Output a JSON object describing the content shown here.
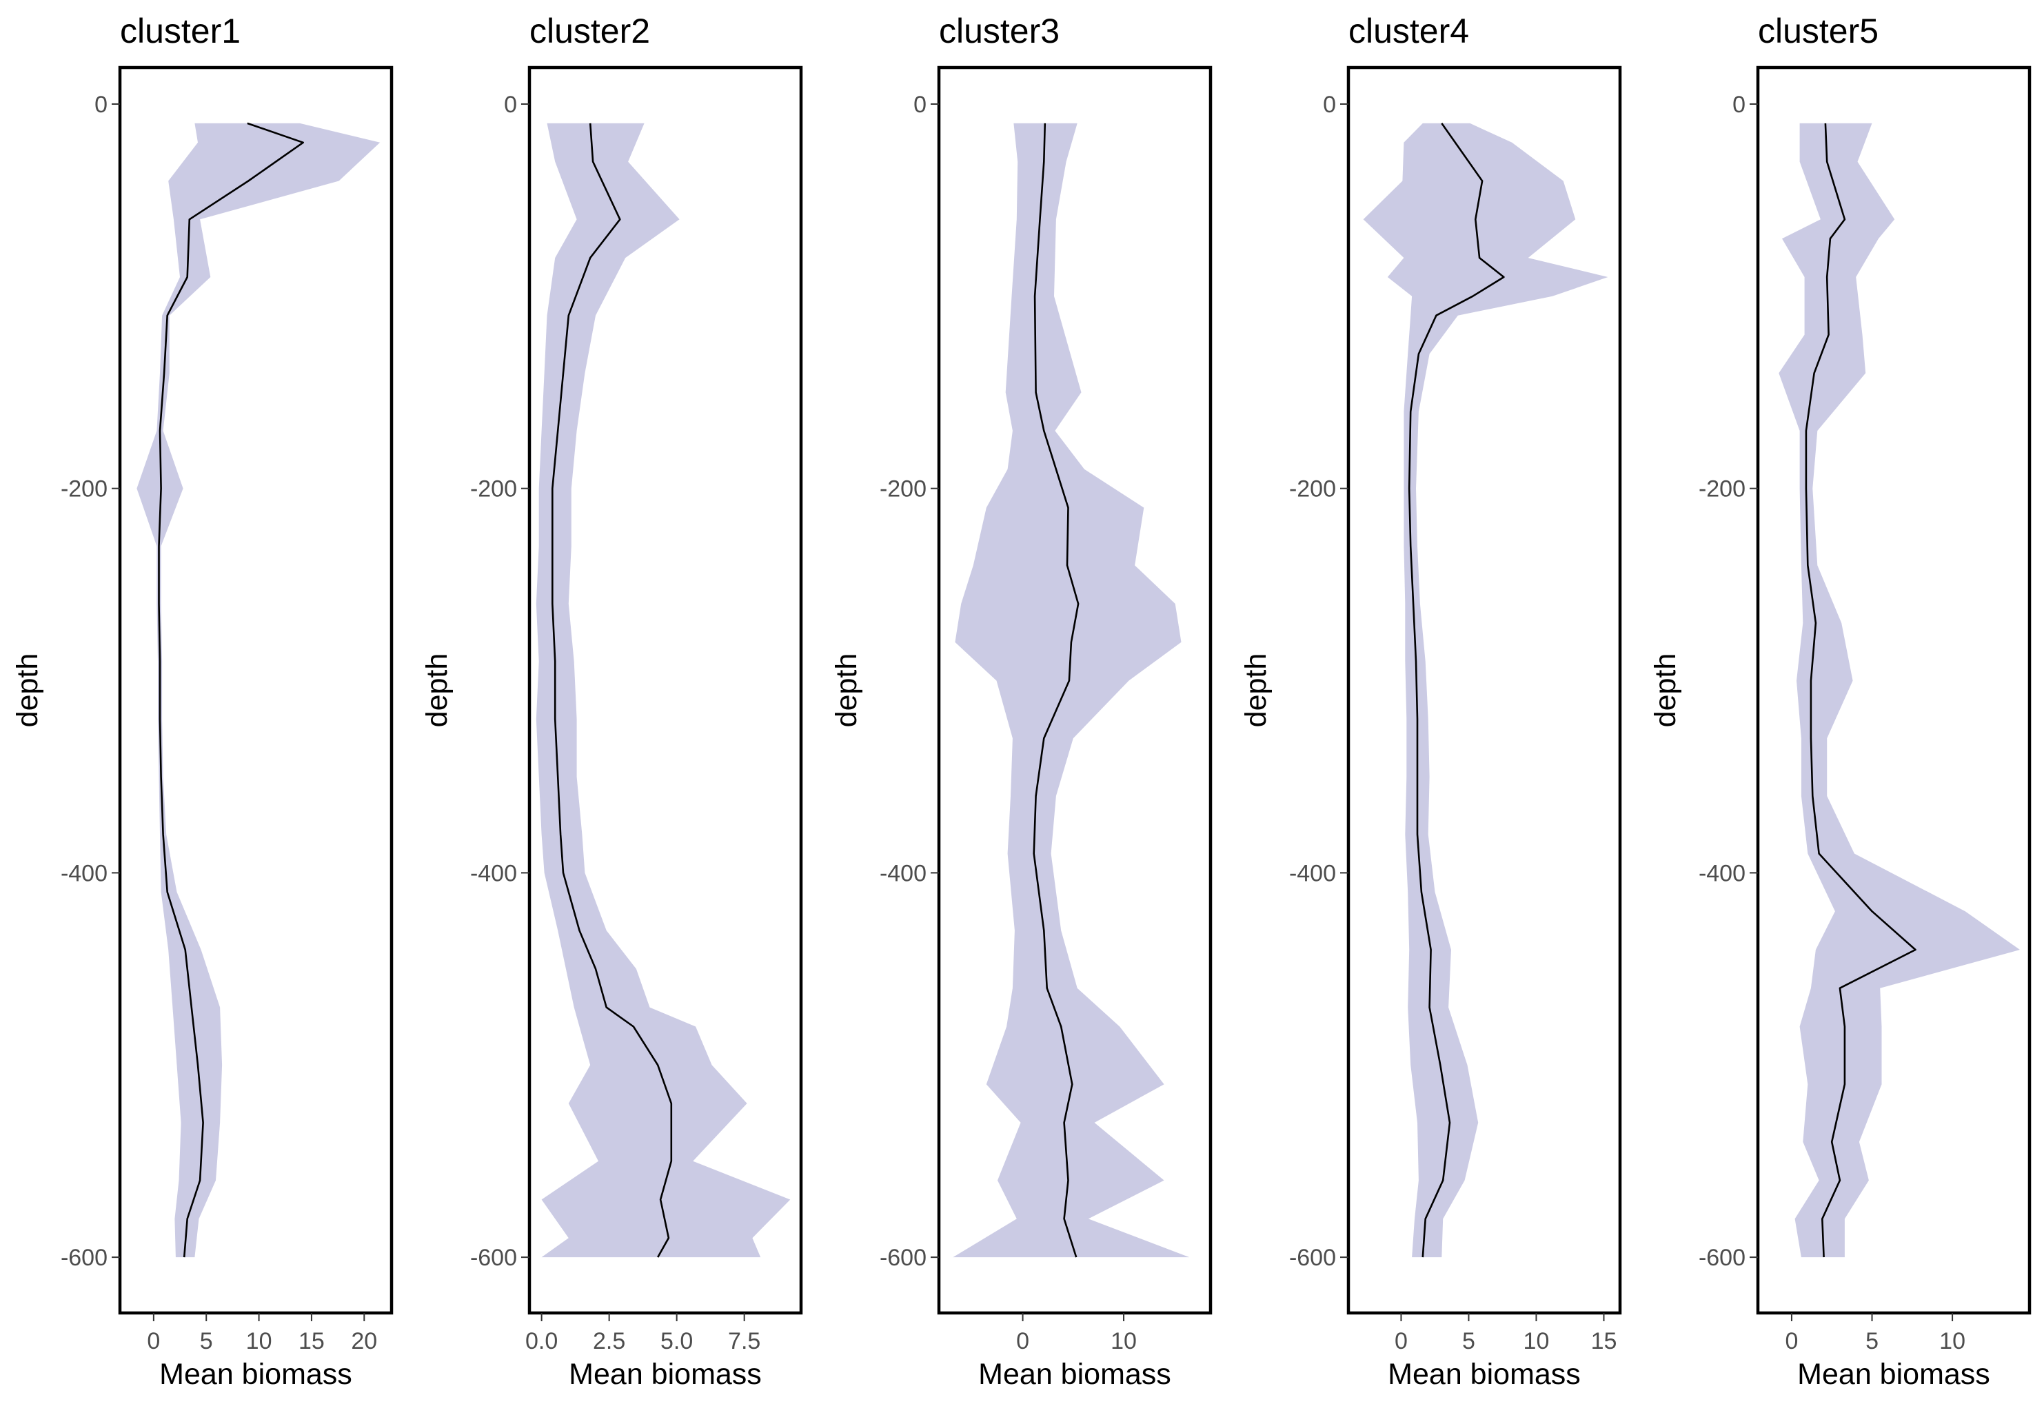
{
  "figure": {
    "y_axis_label": "depth",
    "x_axis_label": "Mean biomass"
  },
  "colors": {
    "ribbon": "#cbcbe4",
    "line": "#000000",
    "frame": "#000000",
    "tick_text": "#4d4d4d",
    "background": "#ffffff"
  },
  "chart_data": [
    {
      "type": "area",
      "title": "cluster1",
      "xlabel": "Mean biomass",
      "ylabel": "depth",
      "xlim": [
        -3.2,
        22.6
      ],
      "ylim": [
        -629,
        19
      ],
      "xticks": [
        0,
        5,
        10,
        15,
        20
      ],
      "xtick_labels": [
        "0",
        "5",
        "10",
        "15",
        "20"
      ],
      "yticks": [
        0,
        -200,
        -400,
        -600
      ],
      "ytick_labels": [
        "0",
        "-200",
        "-400",
        "-600"
      ],
      "grid": false,
      "legend": "none",
      "depth": [
        -10,
        -20,
        -40,
        -60,
        -90,
        -110,
        -140,
        -170,
        -200,
        -230,
        -260,
        -290,
        -320,
        -350,
        -380,
        -410,
        -440,
        -470,
        -500,
        -530,
        -560,
        -580,
        -600
      ],
      "mean": [
        8.9,
        14.2,
        9.0,
        3.4,
        3.2,
        1.3,
        1.0,
        0.6,
        0.7,
        0.5,
        0.5,
        0.6,
        0.6,
        0.7,
        0.9,
        1.3,
        3.0,
        3.6,
        4.2,
        4.7,
        4.4,
        3.2,
        2.9
      ],
      "lower": [
        3.9,
        4.2,
        1.4,
        1.9,
        2.5,
        0.8,
        0.6,
        0.3,
        -1.6,
        0.3,
        0.3,
        0.4,
        0.4,
        0.5,
        0.6,
        0.7,
        1.4,
        1.8,
        2.2,
        2.6,
        2.4,
        2.0,
        2.1
      ],
      "upper": [
        13.9,
        21.5,
        17.6,
        4.4,
        5.4,
        1.5,
        1.5,
        0.9,
        2.8,
        0.7,
        0.7,
        0.8,
        0.8,
        0.9,
        1.2,
        2.2,
        4.5,
        6.3,
        6.5,
        6.3,
        5.9,
        4.3,
        3.9
      ]
    },
    {
      "type": "area",
      "title": "cluster2",
      "xlabel": "Mean biomass",
      "ylabel": "depth",
      "xlim": [
        -0.45,
        9.6
      ],
      "ylim": [
        -629,
        19
      ],
      "xticks": [
        0,
        2.5,
        5,
        7.5
      ],
      "xtick_labels": [
        "0.0",
        "2.5",
        "5.0",
        "7.5"
      ],
      "yticks": [
        0,
        -200,
        -400,
        -600
      ],
      "ytick_labels": [
        "0",
        "-200",
        "-400",
        "-600"
      ],
      "grid": false,
      "legend": "none",
      "depth": [
        -10,
        -30,
        -60,
        -80,
        -110,
        -140,
        -170,
        -200,
        -230,
        -260,
        -290,
        -320,
        -350,
        -380,
        -400,
        -430,
        -450,
        -470,
        -480,
        -500,
        -520,
        -550,
        -570,
        -590,
        -600
      ],
      "mean": [
        1.8,
        1.9,
        2.9,
        1.8,
        1.0,
        0.8,
        0.6,
        0.4,
        0.4,
        0.4,
        0.5,
        0.5,
        0.6,
        0.7,
        0.8,
        1.4,
        2.0,
        2.4,
        3.4,
        4.3,
        4.8,
        4.8,
        4.4,
        4.7,
        4.3
      ],
      "lower": [
        0.2,
        0.5,
        1.3,
        0.5,
        0.2,
        0.1,
        0.0,
        -0.1,
        -0.1,
        -0.2,
        -0.1,
        -0.2,
        -0.1,
        0.0,
        0.1,
        0.6,
        0.9,
        1.2,
        1.4,
        1.8,
        1.0,
        2.1,
        0.0,
        1.0,
        0.0
      ],
      "upper": [
        3.8,
        3.2,
        5.1,
        3.1,
        2.0,
        1.6,
        1.3,
        1.1,
        1.1,
        1.0,
        1.2,
        1.3,
        1.3,
        1.5,
        1.6,
        2.4,
        3.5,
        4.0,
        5.7,
        6.3,
        7.6,
        5.6,
        9.2,
        7.8,
        8.1
      ]
    },
    {
      "type": "area",
      "title": "cluster3",
      "xlabel": "Mean biomass",
      "ylabel": "depth",
      "xlim": [
        -8.3,
        18.6
      ],
      "ylim": [
        -629,
        19
      ],
      "xticks": [
        0,
        10
      ],
      "xtick_labels": [
        "0",
        "10"
      ],
      "yticks": [
        0,
        -200,
        -400,
        -600
      ],
      "ytick_labels": [
        "0",
        "-200",
        "-400",
        "-600"
      ],
      "grid": false,
      "legend": "none",
      "depth": [
        -10,
        -30,
        -60,
        -100,
        -150,
        -170,
        -190,
        -210,
        -240,
        -260,
        -280,
        -300,
        -330,
        -360,
        -390,
        -430,
        -460,
        -480,
        -510,
        -530,
        -560,
        -580,
        -600
      ],
      "mean": [
        2.2,
        2.1,
        1.7,
        1.2,
        1.3,
        2.1,
        3.3,
        4.5,
        4.4,
        5.5,
        4.8,
        4.6,
        2.1,
        1.3,
        1.1,
        2.1,
        2.4,
        3.8,
        4.9,
        4.1,
        4.5,
        4.1,
        5.3
      ],
      "lower": [
        -0.9,
        -0.5,
        -0.6,
        -1.1,
        -1.7,
        -1.0,
        -1.5,
        -3.6,
        -4.9,
        -6.1,
        -6.7,
        -2.6,
        -1.0,
        -1.2,
        -1.5,
        -0.8,
        -1.0,
        -1.6,
        -3.6,
        -0.2,
        -2.5,
        -0.6,
        -6.9
      ],
      "upper": [
        5.4,
        4.3,
        3.3,
        3.1,
        5.8,
        3.2,
        6.1,
        12.0,
        11.1,
        15.1,
        15.7,
        10.5,
        5.0,
        3.3,
        2.8,
        3.8,
        5.4,
        9.6,
        14.0,
        7.1,
        14.0,
        6.5,
        16.5
      ]
    },
    {
      "type": "area",
      "title": "cluster4",
      "xlabel": "Mean biomass",
      "ylabel": "depth",
      "xlim": [
        -3.9,
        16.2
      ],
      "ylim": [
        -629,
        19
      ],
      "xticks": [
        0,
        5,
        10,
        15
      ],
      "xtick_labels": [
        "0",
        "5",
        "10",
        "15"
      ],
      "yticks": [
        0,
        -200,
        -400,
        -600
      ],
      "ytick_labels": [
        "0",
        "-200",
        "-400",
        "-600"
      ],
      "grid": false,
      "legend": "none",
      "depth": [
        -10,
        -20,
        -40,
        -60,
        -80,
        -90,
        -100,
        -110,
        -130,
        -160,
        -200,
        -230,
        -260,
        -290,
        -320,
        -350,
        -380,
        -410,
        -440,
        -470,
        -500,
        -530,
        -560,
        -580,
        -600
      ],
      "mean": [
        3.0,
        4.0,
        6.0,
        5.5,
        5.8,
        7.6,
        5.3,
        2.6,
        1.3,
        0.7,
        0.6,
        0.7,
        0.9,
        1.1,
        1.2,
        1.2,
        1.2,
        1.5,
        2.2,
        2.1,
        2.9,
        3.6,
        3.1,
        1.8,
        1.6
      ],
      "lower": [
        1.6,
        0.2,
        0.1,
        -2.8,
        0.2,
        -1.0,
        0.8,
        0.7,
        0.5,
        0.2,
        0.2,
        0.2,
        0.3,
        0.3,
        0.4,
        0.4,
        0.3,
        0.5,
        0.6,
        0.5,
        0.7,
        1.2,
        1.3,
        1.0,
        0.8
      ],
      "upper": [
        5.1,
        8.2,
        12.0,
        12.9,
        9.4,
        15.3,
        11.2,
        4.2,
        2.1,
        1.3,
        1.1,
        1.2,
        1.4,
        1.8,
        2.0,
        2.1,
        2.0,
        2.5,
        3.7,
        3.5,
        4.9,
        5.7,
        4.7,
        3.1,
        3.0
      ]
    },
    {
      "type": "area",
      "title": "cluster5",
      "xlabel": "Mean biomass",
      "ylabel": "depth",
      "xlim": [
        -2.1,
        14.8
      ],
      "ylim": [
        -629,
        19
      ],
      "xticks": [
        0,
        5,
        10
      ],
      "xtick_labels": [
        "0",
        "5",
        "10"
      ],
      "yticks": [
        0,
        -200,
        -400,
        -600
      ],
      "ytick_labels": [
        "0",
        "-200",
        "-400",
        "-600"
      ],
      "grid": false,
      "legend": "none",
      "depth": [
        -10,
        -30,
        -60,
        -70,
        -90,
        -120,
        -140,
        -170,
        -200,
        -240,
        -270,
        -300,
        -330,
        -360,
        -390,
        -420,
        -440,
        -460,
        -480,
        -510,
        -540,
        -560,
        -580,
        -600
      ],
      "mean": [
        2.1,
        2.2,
        3.3,
        2.4,
        2.2,
        2.3,
        1.4,
        0.9,
        0.9,
        1.0,
        1.5,
        1.2,
        1.2,
        1.3,
        1.7,
        5.0,
        7.7,
        3.0,
        3.3,
        3.3,
        2.5,
        3.0,
        1.9,
        2.0
      ],
      "lower": [
        0.5,
        0.5,
        1.8,
        -0.6,
        0.8,
        0.8,
        -0.8,
        0.5,
        0.5,
        0.6,
        0.7,
        0.3,
        0.6,
        0.6,
        1.0,
        2.7,
        1.5,
        1.2,
        0.5,
        1.0,
        0.7,
        1.7,
        0.2,
        0.6
      ],
      "upper": [
        5.0,
        4.1,
        6.4,
        5.4,
        4.0,
        4.4,
        4.6,
        1.6,
        1.3,
        1.6,
        3.1,
        3.8,
        2.2,
        2.2,
        3.9,
        10.8,
        14.2,
        5.5,
        5.6,
        5.6,
        4.2,
        4.8,
        3.3,
        3.3
      ]
    }
  ]
}
